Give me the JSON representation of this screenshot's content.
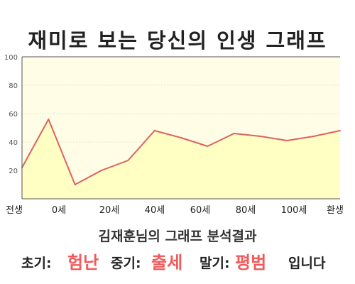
{
  "title": "재미로 보는 당신의 인생 그래프",
  "caption": "김재훈님의 그래프 분석결과",
  "summary": {
    "early_label": "초기:",
    "early_value": "험난",
    "mid_label": "중기:",
    "mid_value": "출세",
    "late_label": "말기:",
    "late_value": "평범",
    "suffix": "입니다"
  },
  "colors": {
    "plot_bg": "#fffde6",
    "area_fill": "#ffffc4",
    "line": "#e06060",
    "accent_text": "#f25a5a"
  },
  "chart_data": {
    "type": "area",
    "x_tick_labels": [
      "전생",
      "0세",
      "20세",
      "40세",
      "60세",
      "80세",
      "100세",
      "환생"
    ],
    "values": [
      22,
      56,
      10,
      20,
      27,
      48,
      43,
      37,
      46,
      44,
      41,
      44,
      48
    ],
    "y_ticks": [
      20,
      40,
      60,
      80,
      100
    ],
    "ylim": [
      0,
      100
    ],
    "grid": true,
    "legend": false
  }
}
